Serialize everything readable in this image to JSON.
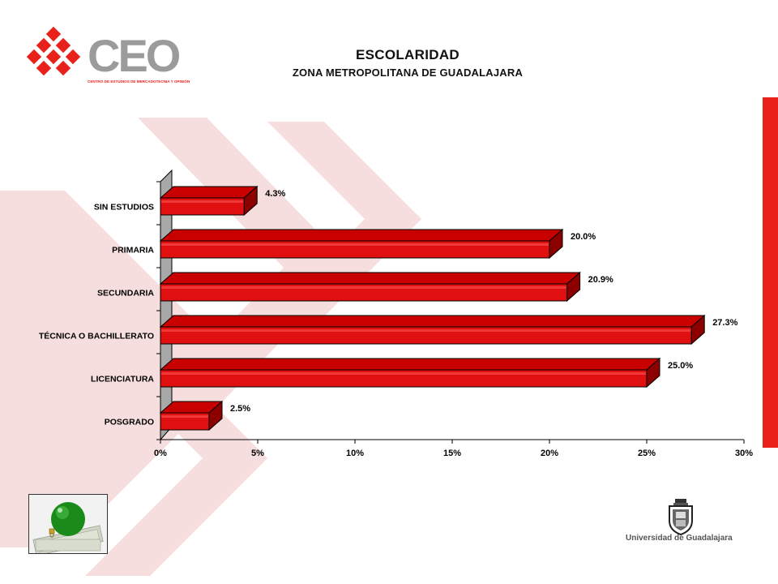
{
  "header": {
    "logo_text": "CEO",
    "logo_subtitle": "CENTRO DE ESTUDIOS DE MERCADOTECNIA Y OPINIÓN",
    "title": "ESCOLARIDAD",
    "subtitle": "ZONA METROPOLITANA DE GUADALAJARA"
  },
  "footer": {
    "university": "Universidad de Guadalajara",
    "thumbnail_icon": "christmas-ornament-on-money"
  },
  "colors": {
    "bar_front": "#e01010",
    "bar_top": "#c80000",
    "bar_side": "#8c0000",
    "bar_stroke": "#000000",
    "accent_strip": "#e8221b",
    "watermark": "#f7dede",
    "logo_red": "#e8221b",
    "logo_gray": "#9b9b9b",
    "back_wall": "#a8a8a8"
  },
  "chart_data": {
    "type": "bar",
    "orientation": "horizontal",
    "style": "3d",
    "categories": [
      "SIN ESTUDIOS",
      "PRIMARIA",
      "SECUNDARIA",
      "TÉCNICA O BACHILLERATO",
      "LICENCIATURA",
      "POSGRADO"
    ],
    "values": [
      4.3,
      20.0,
      20.9,
      27.3,
      25.0,
      2.5
    ],
    "value_labels": [
      "4.3%",
      "20.0%",
      "20.9%",
      "27.3%",
      "25.0%",
      "2.5%"
    ],
    "x_ticks": [
      "0%",
      "5%",
      "10%",
      "15%",
      "20%",
      "25%",
      "30%"
    ],
    "xlim": [
      0,
      30
    ],
    "title": "ESCOLARIDAD",
    "subtitle": "ZONA METROPOLITANA DE GUADALAJARA",
    "xlabel": "",
    "ylabel": "",
    "legend": "none",
    "grid": false
  }
}
